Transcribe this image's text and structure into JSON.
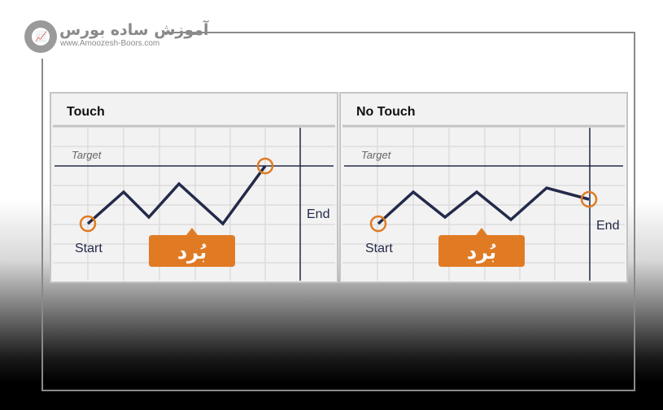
{
  "logo": {
    "name_fa": "آموزش ساده بورس",
    "url": "www.Amoozesh-Boors.com"
  },
  "panels": [
    {
      "title": "Touch",
      "target_label": "Target",
      "start_label": "Start",
      "end_label": "End",
      "badge": "بُرد"
    },
    {
      "title": "No Touch",
      "target_label": "Target",
      "start_label": "Start",
      "end_label": "End",
      "badge": "بُرد"
    }
  ],
  "colors": {
    "accent": "#e07b24",
    "line": "#232a4a",
    "grid": "#dcdcdc",
    "panel_bg": "#f2f2f2"
  }
}
